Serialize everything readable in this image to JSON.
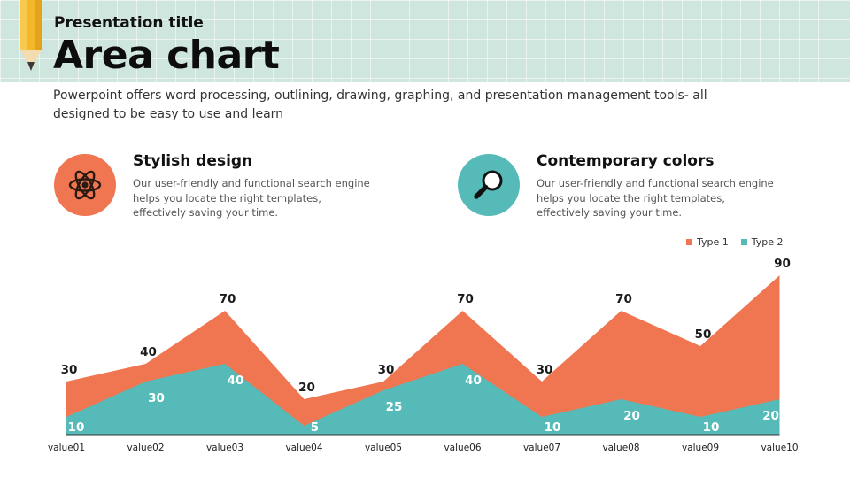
{
  "header": {
    "subtitle": "Presentation title",
    "title": "Area chart",
    "description": "Powerpoint offers word processing, outlining, drawing, graphing, and presentation management tools- all designed to be easy to use and learn"
  },
  "features": [
    {
      "icon": "atom-icon",
      "title": "Stylish design",
      "text": "Our user-friendly and functional search engine helps you locate the right templates, effectively saving your time.",
      "color": "#ef7650"
    },
    {
      "icon": "magnifier-icon",
      "title": "Contemporary colors",
      "text": "Our user-friendly and functional search engine helps you locate the right templates, effectively saving your time.",
      "color": "#56bbb8"
    }
  ],
  "chart_data": {
    "type": "area",
    "categories": [
      "value01",
      "value02",
      "value03",
      "value04",
      "value05",
      "value06",
      "value07",
      "value08",
      "value09",
      "value10"
    ],
    "series": [
      {
        "name": "Type 1",
        "color": "#ef7650",
        "values": [
          30,
          40,
          70,
          20,
          30,
          70,
          30,
          70,
          50,
          90
        ]
      },
      {
        "name": "Type 2",
        "color": "#56bbb8",
        "values": [
          10,
          30,
          40,
          5,
          25,
          40,
          10,
          20,
          10,
          20
        ]
      }
    ],
    "ylim": [
      0,
      90
    ],
    "legend_position": "top-right",
    "grid": false
  }
}
